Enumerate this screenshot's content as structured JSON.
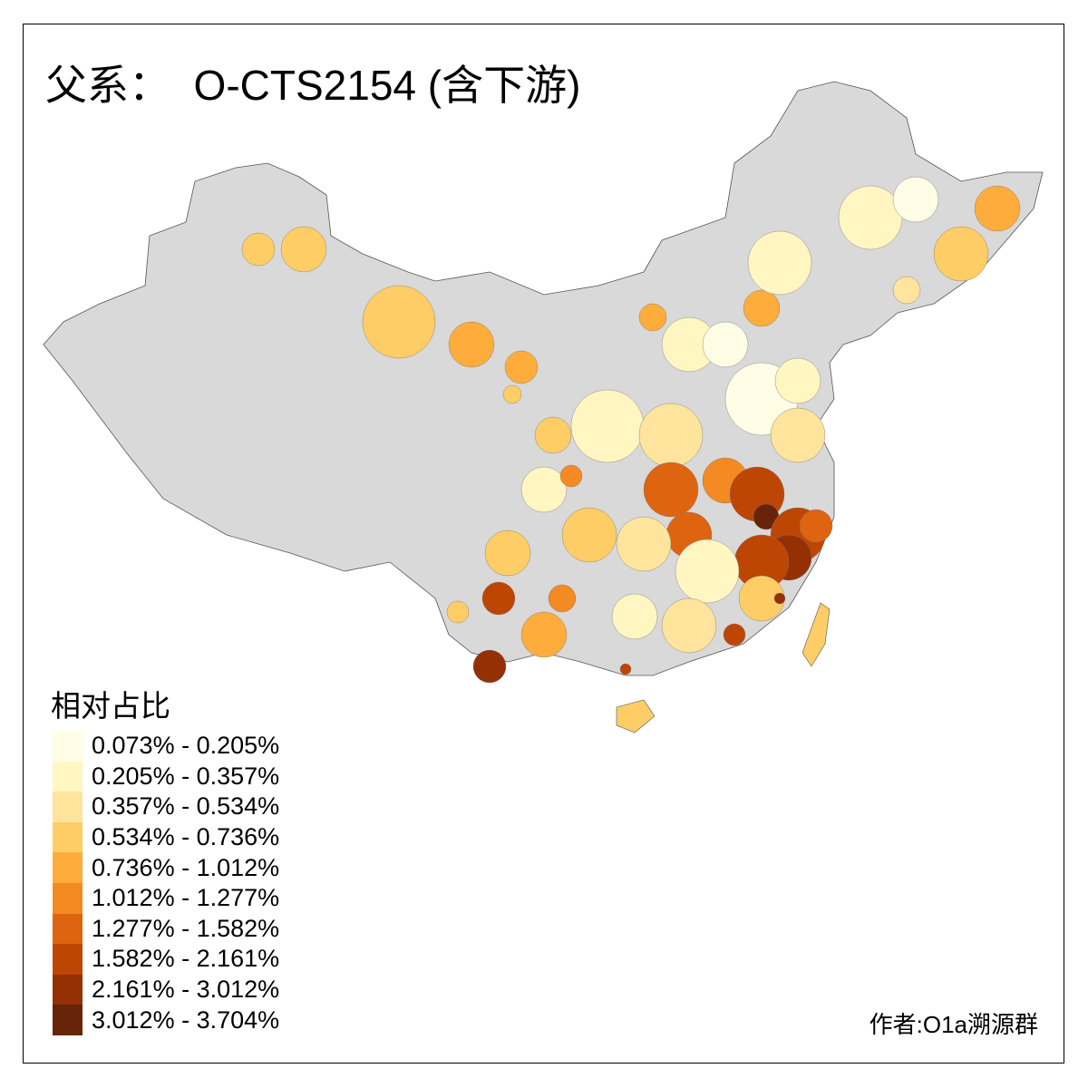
{
  "title": "父系：  O-CTS2154 (含下游)",
  "legend": {
    "title": "相对占比",
    "items": [
      {
        "label": "0.073% - 0.205%",
        "color": "#FFFDE5"
      },
      {
        "label": "0.205% - 0.357%",
        "color": "#FFF6C2"
      },
      {
        "label": "0.357% - 0.534%",
        "color": "#FEE49C"
      },
      {
        "label": "0.534% - 0.736%",
        "color": "#FECD66"
      },
      {
        "label": "0.736% - 1.012%",
        "color": "#FEAC3C"
      },
      {
        "label": "1.012% - 1.277%",
        "color": "#F38A22"
      },
      {
        "label": "1.277% - 1.582%",
        "color": "#DE6410"
      },
      {
        "label": "1.582% - 2.161%",
        "color": "#BE4604"
      },
      {
        "label": "2.161% - 3.012%",
        "color": "#933104"
      },
      {
        "label": "3.012% - 3.704%",
        "color": "#672408"
      }
    ]
  },
  "no_data_color": "#D9D9D9",
  "credit": "作者:O1a溯源群"
}
